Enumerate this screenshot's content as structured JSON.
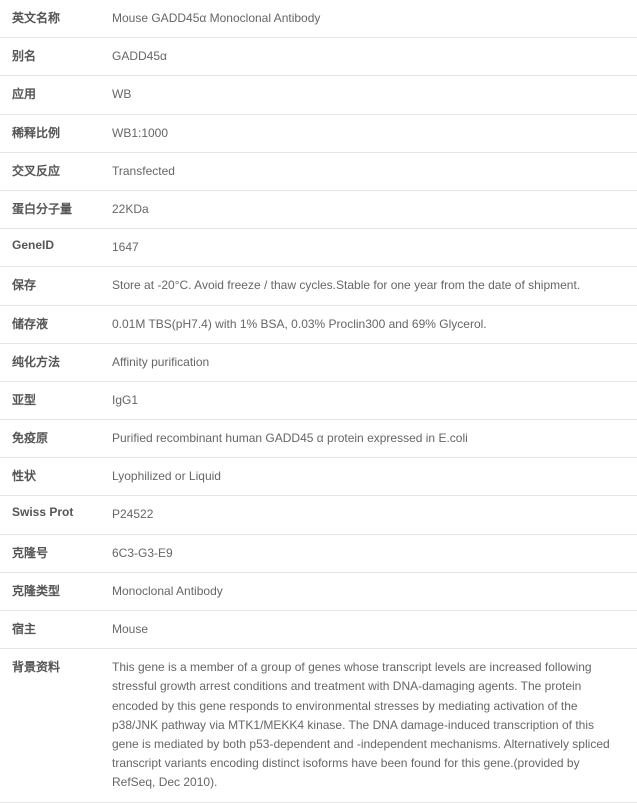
{
  "rows": [
    {
      "label": "英文名称",
      "value": "Mouse GADD45α Monoclonal Antibody"
    },
    {
      "label": "别名",
      "value": "GADD45α"
    },
    {
      "label": "应用",
      "value": "WB"
    },
    {
      "label": "稀释比例",
      "value": "WB1:1000"
    },
    {
      "label": "交叉反应",
      "value": "Transfected"
    },
    {
      "label": "蛋白分子量",
      "value": "22KDa"
    },
    {
      "label": "GeneID",
      "value": "1647"
    },
    {
      "label": "保存",
      "value": "Store at -20°C. Avoid freeze / thaw cycles.Stable for one year from the date of shipment."
    },
    {
      "label": "储存液",
      "value": "0.01M TBS(pH7.4) with 1% BSA, 0.03% Proclin300 and 69% Glycerol."
    },
    {
      "label": "纯化方法",
      "value": "Affinity purification"
    },
    {
      "label": "亚型",
      "value": "IgG1"
    },
    {
      "label": "免疫原",
      "value": "Purified recombinant human GADD45 α protein expressed in E.coli"
    },
    {
      "label": "性状",
      "value": "Lyophilized or Liquid"
    },
    {
      "label": "Swiss Prot",
      "value": "P24522"
    },
    {
      "label": "克隆号",
      "value": "6C3-G3-E9"
    },
    {
      "label": "克隆类型",
      "value": "Monoclonal Antibody"
    },
    {
      "label": "宿主",
      "value": "Mouse"
    },
    {
      "label": "背景资料",
      "value": "This gene is a member of a group of genes whose transcript levels are increased following stressful growth arrest conditions and treatment with DNA-damaging agents. The protein encoded by this gene responds to environmental stresses by mediating activation of the p38/JNK pathway via MTK1/MEKK4 kinase. The DNA damage-induced transcription of this gene is mediated by both p53-dependent and -independent mechanisms. Alternatively spliced transcript variants encoding distinct isoforms have been found for this gene.(provided by RefSeq, Dec 2010)."
    }
  ]
}
